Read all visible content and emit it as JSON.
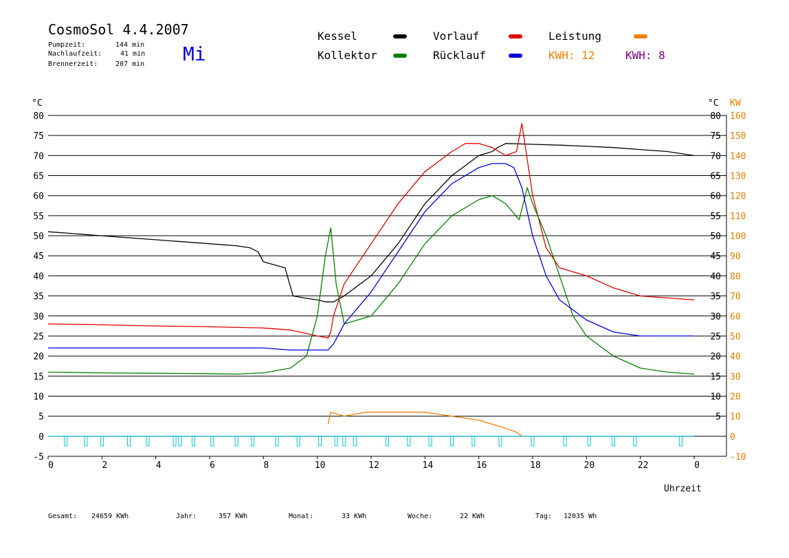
{
  "header": {
    "title": "CosmoSol 4.4.2007",
    "day": "Mi",
    "stats": [
      {
        "label": "Pumpzeit:",
        "value": "144 min"
      },
      {
        "label": "Nachlaufzeit:",
        "value": "41 min"
      },
      {
        "label": "Brennerzeit:",
        "value": "207 min"
      }
    ]
  },
  "legend": [
    {
      "name": "Kessel",
      "color": "#000000"
    },
    {
      "name": "Vorlauf",
      "color": "#e00000"
    },
    {
      "name": "Leistung",
      "color": "#f08000"
    },
    {
      "name": "Kollektor",
      "color": "#008000"
    },
    {
      "name": "Rücklauf",
      "color": "#0000e0"
    }
  ],
  "kwh": [
    {
      "text": "KWH: 12",
      "color": "#f08000"
    },
    {
      "text": "KWH: 8",
      "color": "#800080"
    }
  ],
  "footer": [
    {
      "label": "Gesamt:",
      "value": "24659 KWh"
    },
    {
      "label": "Jahr:",
      "value": "357 KWh"
    },
    {
      "label": "Monat:",
      "value": "33 KWh"
    },
    {
      "label": "Woche:",
      "value": "22 KWh"
    },
    {
      "label": "Tag:",
      "value": "12035 Wh"
    }
  ],
  "chart_data": {
    "type": "line",
    "xlabel": "Uhrzeit",
    "ylabel_left": "°C",
    "ylabel_right_1": "°C",
    "ylabel_right_2": "KW",
    "xlim": [
      0,
      24
    ],
    "ylim": [
      -5,
      80
    ],
    "x_ticks": [
      "0",
      "2",
      "4",
      "6",
      "8",
      "10",
      "12",
      "14",
      "16",
      "18",
      "20",
      "22",
      "0"
    ],
    "y_ticks_left": [
      "-5",
      "0",
      "5",
      "10",
      "15",
      "20",
      "25",
      "30",
      "35",
      "40",
      "45",
      "50",
      "55",
      "60",
      "65",
      "70",
      "75",
      "80"
    ],
    "y_ticks_right_temp": [
      "5",
      "10",
      "15",
      "20",
      "25",
      "30",
      "35",
      "40",
      "45",
      "50",
      "55",
      "60",
      "65",
      "70",
      "75",
      "80"
    ],
    "y_ticks_right_kw": [
      "-10",
      "0",
      "10",
      "20",
      "30",
      "40",
      "50",
      "60",
      "70",
      "80",
      "90",
      "100",
      "110",
      "120",
      "130",
      "140",
      "150",
      "160"
    ],
    "grid": "horizontal",
    "series": [
      {
        "name": "Kessel",
        "color": "#000000",
        "x": [
          0,
          1,
          2,
          3,
          4,
          5,
          6,
          7,
          7.5,
          7.8,
          8,
          8.8,
          9.1,
          9.5,
          10,
          10.3,
          10.6,
          11,
          12,
          13,
          14,
          15,
          16,
          16.5,
          16.7,
          17,
          18,
          19,
          20,
          21,
          22,
          23,
          24
        ],
        "y": [
          51,
          50.5,
          50,
          49.5,
          49,
          48.5,
          48,
          47.5,
          47,
          46,
          43.5,
          42,
          35,
          34.5,
          34,
          33.5,
          33.5,
          35,
          40,
          48,
          58,
          65,
          70,
          71,
          72,
          73,
          72.8,
          72.6,
          72.3,
          72,
          71.5,
          71,
          70
        ]
      },
      {
        "name": "Vorlauf",
        "color": "#e00000",
        "x": [
          0,
          2,
          4,
          6,
          8,
          9,
          10,
          10.4,
          10.5,
          10.6,
          11,
          12,
          13,
          14,
          15,
          15.5,
          16,
          16.5,
          17,
          17.4,
          17.6,
          18,
          18.5,
          19,
          20,
          21,
          22,
          23,
          24
        ],
        "y": [
          28,
          27.8,
          27.5,
          27.3,
          27,
          26.5,
          25,
          24.5,
          26,
          30,
          38,
          48,
          58,
          66,
          71,
          73,
          73,
          72,
          70,
          71,
          78,
          60,
          47,
          42,
          40,
          37,
          35,
          34.5,
          34
        ]
      },
      {
        "name": "Kollektor",
        "color": "#008000",
        "x": [
          0,
          2,
          4,
          6,
          7,
          8,
          9,
          9.6,
          10,
          10.3,
          10.5,
          10.7,
          11,
          12,
          13,
          14,
          15,
          16,
          16.5,
          17,
          17.5,
          17.8,
          18,
          18.5,
          19,
          19.5,
          20,
          21,
          22,
          23,
          24
        ],
        "y": [
          16,
          15.8,
          15.7,
          15.6,
          15.5,
          15.8,
          17,
          20,
          30,
          45,
          52,
          38,
          28,
          30,
          38,
          48,
          55,
          59,
          60,
          58,
          54,
          62,
          58,
          50,
          40,
          30,
          25,
          20,
          17,
          16,
          15.5
        ]
      },
      {
        "name": "Rücklauf",
        "color": "#0000e0",
        "x": [
          0,
          2,
          4,
          6,
          8,
          9,
          10,
          10.4,
          10.6,
          11,
          12,
          13,
          14,
          15,
          16,
          16.5,
          17,
          17.3,
          17.6,
          18,
          18.5,
          19,
          20,
          21,
          22,
          23,
          24
        ],
        "y": [
          22,
          22,
          22,
          22,
          22,
          21.5,
          21.5,
          21.5,
          23,
          28,
          36,
          46,
          56,
          63,
          67,
          68,
          68,
          67,
          62,
          50,
          40,
          34,
          29,
          26,
          25,
          25,
          25
        ]
      },
      {
        "name": "Leistung",
        "color": "#f08000",
        "x": [
          10.4,
          10.5,
          11,
          11.8,
          12,
          13,
          14,
          15,
          16,
          16.5,
          17,
          17.4,
          17.6
        ],
        "y": [
          3,
          6,
          5,
          6,
          6,
          6,
          6,
          5,
          4,
          3,
          2,
          1,
          0
        ]
      }
    ]
  }
}
